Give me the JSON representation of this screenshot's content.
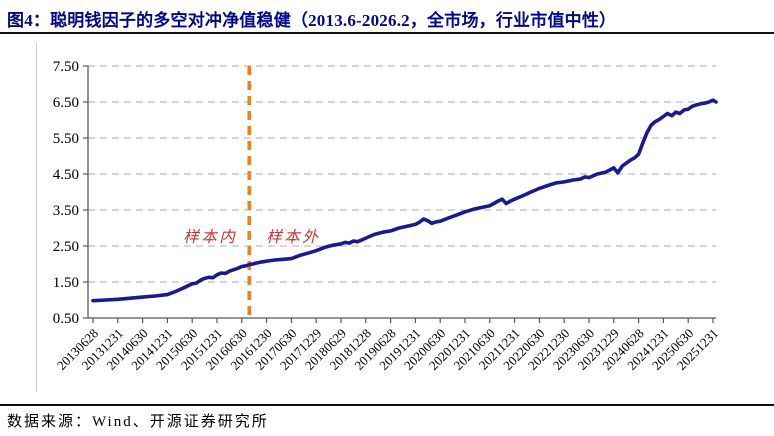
{
  "header": {
    "title": "图4：聪明钱因子的多空对冲净值稳健（2013.6-2026.2，全市场，行业市值中性）"
  },
  "footer": {
    "source": "数据来源：Wind、开源证券研究所"
  },
  "colors": {
    "title_navy": "#00088B",
    "line_navy": "#191996",
    "divider_orange": "#F08026",
    "sample_label_red": "#CC3333",
    "gridline_gray": "#BFBFBF",
    "axis_gray": "#595959",
    "tick_text_black": "#000000"
  },
  "chart_data": {
    "type": "line",
    "title": "聪明钱因子多空对冲净值",
    "xlabel": "",
    "ylabel": "",
    "ylim": [
      0.5,
      7.5
    ],
    "grid": "horizontal-dashed",
    "legend": "none",
    "y_axis": {
      "tick_labels": [
        "7.50",
        "6.50",
        "5.50",
        "4.50",
        "3.50",
        "2.50",
        "1.50",
        "0.50"
      ]
    },
    "x_axis": {
      "tick_labels": [
        "20130628",
        "20131231",
        "20140630",
        "20141231",
        "20150630",
        "20151231",
        "20160630",
        "20161230",
        "20170630",
        "20171229",
        "20180629",
        "20181228",
        "20190628",
        "20191231",
        "20200630",
        "20201231",
        "20210630",
        "20211231",
        "20220630",
        "20221230",
        "20230630",
        "20231229",
        "20240628",
        "20241231",
        "20250630",
        "20251231"
      ],
      "start_decimal_year": 2013.5,
      "end_decimal_year": 2026.06,
      "ticks_per_year": 2
    },
    "divider": {
      "t": 2016.65,
      "label_left": "样本内",
      "label_right": "样本外"
    },
    "series": [
      {
        "name": "多空对冲净值",
        "points": [
          [
            2013.5,
            0.98
          ],
          [
            2013.75,
            1.0
          ],
          [
            2014.0,
            1.02
          ],
          [
            2014.25,
            1.05
          ],
          [
            2014.5,
            1.08
          ],
          [
            2014.75,
            1.11
          ],
          [
            2015.0,
            1.15
          ],
          [
            2015.17,
            1.24
          ],
          [
            2015.33,
            1.34
          ],
          [
            2015.5,
            1.45
          ],
          [
            2015.58,
            1.47
          ],
          [
            2015.67,
            1.55
          ],
          [
            2015.75,
            1.6
          ],
          [
            2015.83,
            1.63
          ],
          [
            2015.92,
            1.62
          ],
          [
            2016.0,
            1.7
          ],
          [
            2016.08,
            1.75
          ],
          [
            2016.17,
            1.74
          ],
          [
            2016.25,
            1.8
          ],
          [
            2016.33,
            1.84
          ],
          [
            2016.42,
            1.88
          ],
          [
            2016.5,
            1.93
          ],
          [
            2016.58,
            1.95
          ],
          [
            2016.65,
            1.98
          ],
          [
            2016.75,
            2.01
          ],
          [
            2016.83,
            2.04
          ],
          [
            2016.92,
            2.06
          ],
          [
            2017.0,
            2.08
          ],
          [
            2017.17,
            2.11
          ],
          [
            2017.33,
            2.13
          ],
          [
            2017.5,
            2.15
          ],
          [
            2017.67,
            2.24
          ],
          [
            2017.83,
            2.3
          ],
          [
            2018.0,
            2.37
          ],
          [
            2018.17,
            2.46
          ],
          [
            2018.33,
            2.52
          ],
          [
            2018.5,
            2.56
          ],
          [
            2018.58,
            2.6
          ],
          [
            2018.67,
            2.58
          ],
          [
            2018.75,
            2.64
          ],
          [
            2018.83,
            2.62
          ],
          [
            2018.92,
            2.67
          ],
          [
            2019.0,
            2.72
          ],
          [
            2019.17,
            2.82
          ],
          [
            2019.33,
            2.88
          ],
          [
            2019.5,
            2.92
          ],
          [
            2019.67,
            3.0
          ],
          [
            2019.83,
            3.05
          ],
          [
            2020.0,
            3.1
          ],
          [
            2020.08,
            3.16
          ],
          [
            2020.17,
            3.25
          ],
          [
            2020.25,
            3.2
          ],
          [
            2020.33,
            3.13
          ],
          [
            2020.42,
            3.17
          ],
          [
            2020.5,
            3.19
          ],
          [
            2020.67,
            3.28
          ],
          [
            2020.83,
            3.36
          ],
          [
            2021.0,
            3.45
          ],
          [
            2021.17,
            3.52
          ],
          [
            2021.33,
            3.57
          ],
          [
            2021.5,
            3.62
          ],
          [
            2021.58,
            3.68
          ],
          [
            2021.67,
            3.75
          ],
          [
            2021.75,
            3.8
          ],
          [
            2021.83,
            3.68
          ],
          [
            2021.92,
            3.75
          ],
          [
            2022.0,
            3.8
          ],
          [
            2022.17,
            3.9
          ],
          [
            2022.33,
            4.0
          ],
          [
            2022.5,
            4.1
          ],
          [
            2022.67,
            4.18
          ],
          [
            2022.83,
            4.25
          ],
          [
            2023.0,
            4.28
          ],
          [
            2023.17,
            4.33
          ],
          [
            2023.33,
            4.36
          ],
          [
            2023.42,
            4.42
          ],
          [
            2023.5,
            4.4
          ],
          [
            2023.67,
            4.5
          ],
          [
            2023.83,
            4.55
          ],
          [
            2023.92,
            4.61
          ],
          [
            2024.0,
            4.67
          ],
          [
            2024.08,
            4.53
          ],
          [
            2024.17,
            4.72
          ],
          [
            2024.25,
            4.8
          ],
          [
            2024.33,
            4.88
          ],
          [
            2024.42,
            4.95
          ],
          [
            2024.5,
            5.05
          ],
          [
            2024.58,
            5.35
          ],
          [
            2024.67,
            5.65
          ],
          [
            2024.75,
            5.85
          ],
          [
            2024.83,
            5.95
          ],
          [
            2024.92,
            6.02
          ],
          [
            2025.0,
            6.1
          ],
          [
            2025.08,
            6.18
          ],
          [
            2025.17,
            6.12
          ],
          [
            2025.25,
            6.22
          ],
          [
            2025.33,
            6.18
          ],
          [
            2025.42,
            6.28
          ],
          [
            2025.5,
            6.3
          ],
          [
            2025.58,
            6.38
          ],
          [
            2025.67,
            6.42
          ],
          [
            2025.75,
            6.45
          ],
          [
            2025.83,
            6.47
          ],
          [
            2025.92,
            6.5
          ],
          [
            2026.0,
            6.55
          ],
          [
            2026.06,
            6.5
          ]
        ]
      }
    ]
  }
}
